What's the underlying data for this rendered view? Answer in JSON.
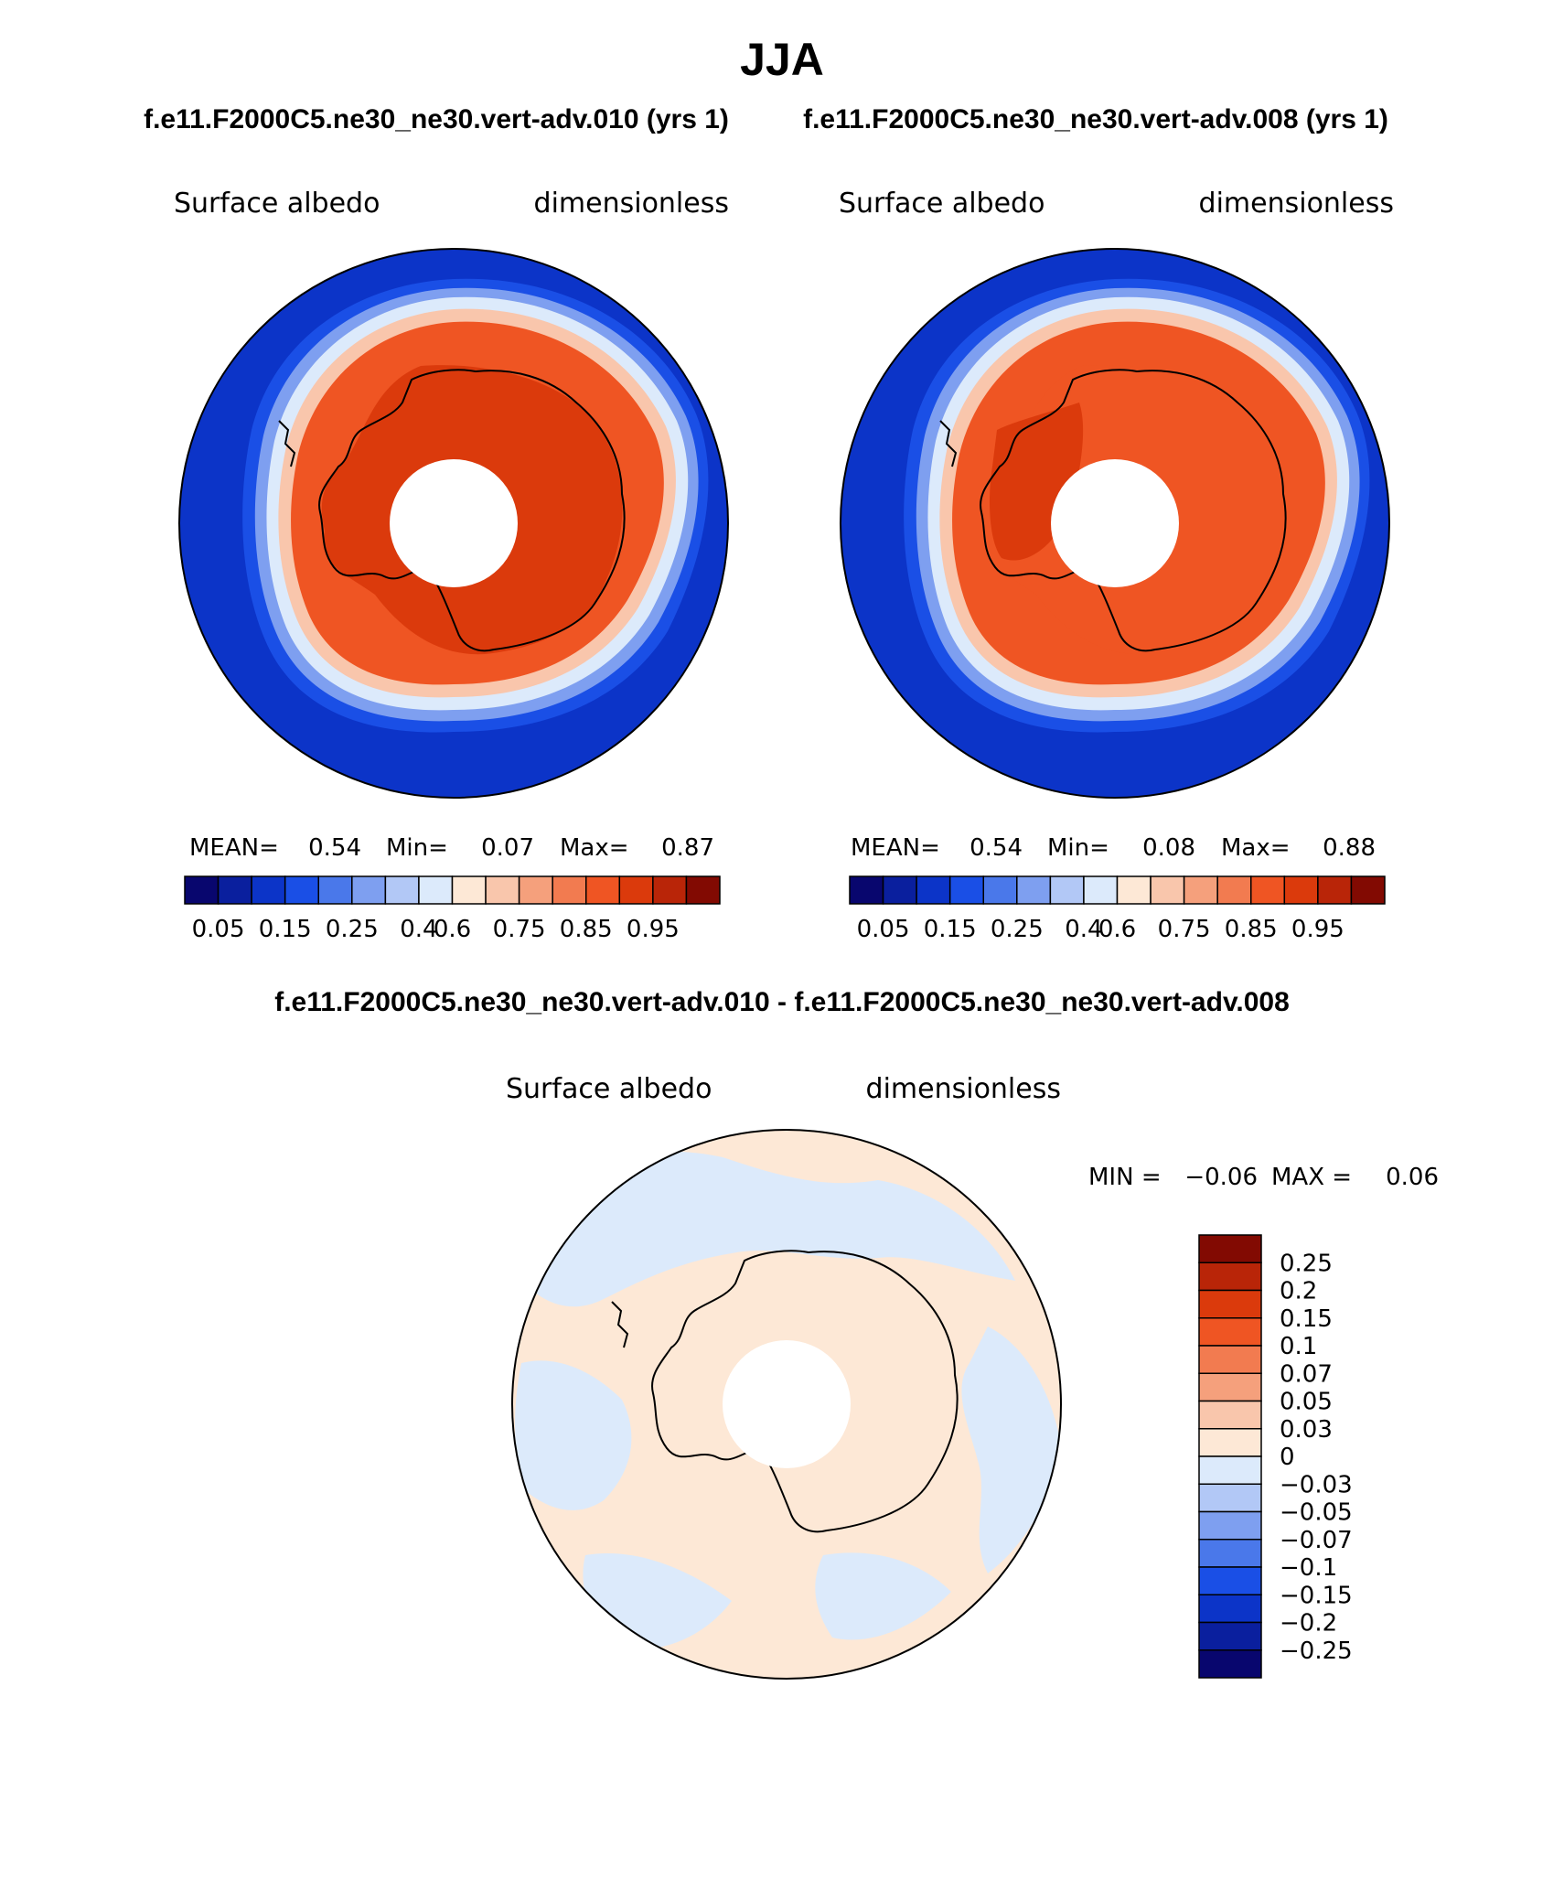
{
  "title": "JJA",
  "top_subtitle_left": "f.e11.F2000C5.ne30_ne30.vert-adv.010 (yrs 1)",
  "top_subtitle_right": "f.e11.F2000C5.ne30_ne30.vert-adv.008 (yrs 1)",
  "diff_subtitle": "f.e11.F2000C5.ne30_ne30.vert-adv.010 - f.e11.F2000C5.ne30_ne30.vert-adv.008",
  "colors": {
    "abs_scale": [
      "#08066e",
      "#0a1f9e",
      "#0c34c8",
      "#1a4fe6",
      "#4a78ea",
      "#7e9ff0",
      "#b2c8f6",
      "#dceafb",
      "#fde8d6",
      "#f9c6ac",
      "#f5a07c",
      "#f27b50",
      "#ef5523",
      "#db3a0c",
      "#b92508",
      "#820a02"
    ],
    "diff_scale": [
      "#08066e",
      "#0a1f9e",
      "#0c34c8",
      "#1a4fe6",
      "#4a78ea",
      "#7e9ff0",
      "#b2c8f6",
      "#dceafb",
      "#fde8d6",
      "#f9c6ac",
      "#f5a07c",
      "#f27b50",
      "#ef5523",
      "#db3a0c",
      "#b92508",
      "#820a02"
    ]
  },
  "chart_data": [
    {
      "type": "heatmap",
      "panel": "left",
      "title": "Surface albedo",
      "units": "dimensionless",
      "projection": "south-polar-stereographic",
      "mean_label": "MEAN=",
      "mean": "0.54",
      "min_label": "Min=",
      "min": "0.07",
      "max_label": "Max=",
      "max": "0.87",
      "colorbar_ticks": [
        "0.05",
        "0.15",
        "0.25",
        "0.4",
        "0.6",
        "0.75",
        "0.85",
        "0.95"
      ],
      "pattern": {
        "ocean": 0.08,
        "ice_ring": 0.5,
        "sea_ice": 0.8,
        "continent": 0.85
      }
    },
    {
      "type": "heatmap",
      "panel": "right",
      "title": "Surface albedo",
      "units": "dimensionless",
      "projection": "south-polar-stereographic",
      "mean_label": "MEAN=",
      "mean": "0.54",
      "min_label": "Min=",
      "min": "0.08",
      "max_label": "Max=",
      "max": "0.88",
      "colorbar_ticks": [
        "0.05",
        "0.15",
        "0.25",
        "0.4",
        "0.6",
        "0.75",
        "0.85",
        "0.95"
      ],
      "pattern": {
        "ocean": 0.08,
        "ice_ring": 0.5,
        "sea_ice": 0.8,
        "continent": 0.8
      }
    },
    {
      "type": "heatmap",
      "panel": "difference",
      "title": "Surface albedo",
      "units": "dimensionless",
      "projection": "south-polar-stereographic",
      "min_label": "MIN =",
      "min": "−0.06",
      "max_label": "MAX =",
      "max": "0.06",
      "colorbar_ticks": [
        "0.25",
        "0.2",
        "0.15",
        "0.1",
        "0.07",
        "0.05",
        "0.03",
        "0",
        "−0.03",
        "−0.05",
        "−0.07",
        "−0.1",
        "−0.15",
        "−0.2",
        "−0.25"
      ]
    }
  ]
}
